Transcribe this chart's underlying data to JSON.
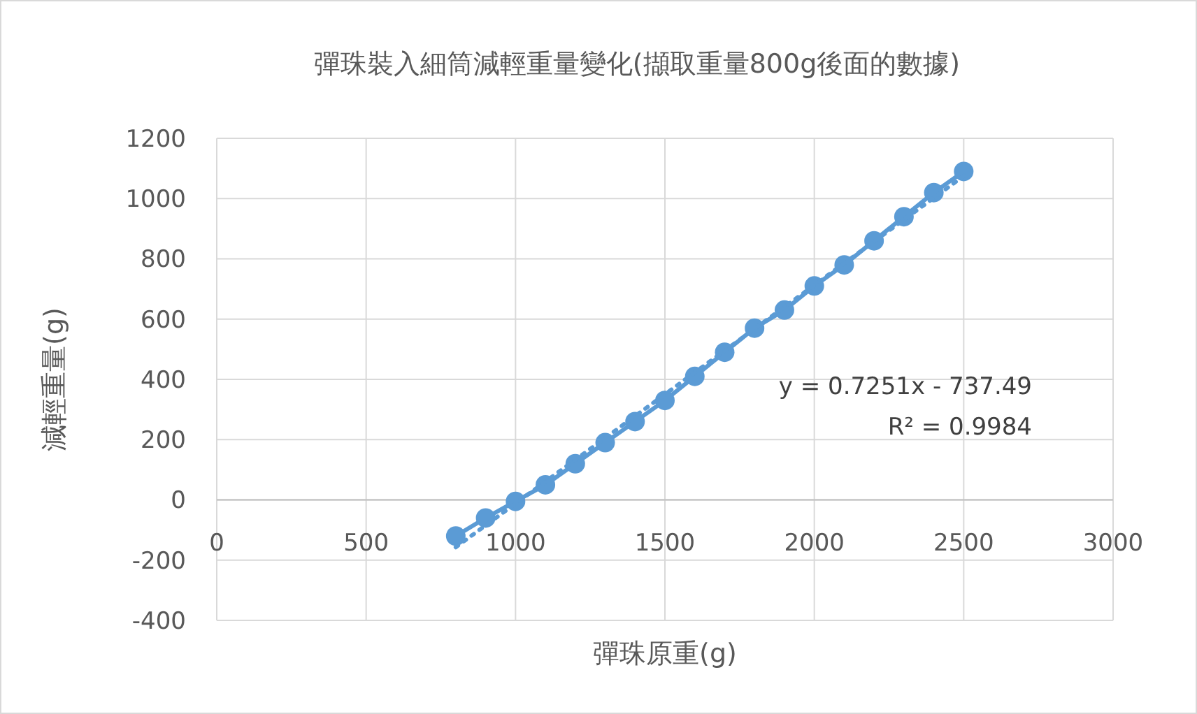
{
  "chart_data": {
    "type": "line",
    "title": "彈珠裝入細筒減輕重量變化(擷取重量800g後面的數據)",
    "xlabel": "彈珠原重(g)",
    "ylabel": "減輕重量(g)",
    "xlim": [
      0,
      3000
    ],
    "xticks": [
      0,
      500,
      1000,
      1500,
      2000,
      2500,
      3000
    ],
    "ylim": [
      -400,
      1200
    ],
    "yticks": [
      -400,
      -200,
      0,
      200,
      400,
      600,
      800,
      1000,
      1200
    ],
    "grid": true,
    "series": [
      {
        "color": "#5b9bd5",
        "marker": "circle",
        "line_style": "solid",
        "x": [
          800,
          900,
          1000,
          1100,
          1200,
          1300,
          1400,
          1500,
          1600,
          1700,
          1800,
          1900,
          2000,
          2100,
          2200,
          2300,
          2400,
          2500
        ],
        "values": [
          -120,
          -60,
          -5,
          50,
          120,
          190,
          260,
          330,
          410,
          490,
          570,
          630,
          710,
          780,
          860,
          940,
          1020,
          1090
        ]
      },
      {
        "color": "#5b9bd5",
        "marker": "none",
        "line_style": "dotted",
        "x": [
          800,
          2500
        ],
        "values": [
          -157,
          1075
        ]
      }
    ],
    "annotations": [
      "y = 0.7251x - 737.49",
      "R² = 0.9984"
    ]
  }
}
